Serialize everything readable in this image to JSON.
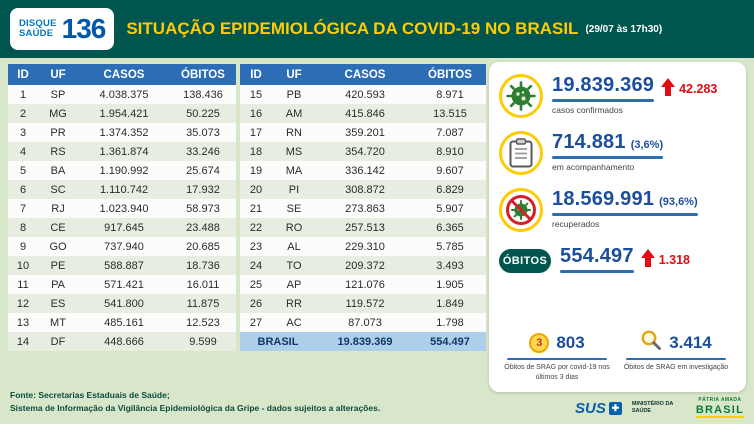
{
  "header": {
    "logo_line1": "DISQUE",
    "logo_line2": "SAÚDE",
    "logo_number": "136",
    "title": "SITUAÇÃO EPIDEMIOLÓGICA DA COVID-19 NO BRASIL",
    "timestamp": "(29/07 às 17h30)"
  },
  "table": {
    "headers": [
      "ID",
      "UF",
      "CASOS",
      "ÓBITOS"
    ],
    "left_rows": [
      [
        "1",
        "SP",
        "4.038.375",
        "138.436"
      ],
      [
        "2",
        "MG",
        "1.954.421",
        "50.225"
      ],
      [
        "3",
        "PR",
        "1.374.352",
        "35.073"
      ],
      [
        "4",
        "RS",
        "1.361.874",
        "33.246"
      ],
      [
        "5",
        "BA",
        "1.190.992",
        "25.674"
      ],
      [
        "6",
        "SC",
        "1.110.742",
        "17.932"
      ],
      [
        "7",
        "RJ",
        "1.023.940",
        "58.973"
      ],
      [
        "8",
        "CE",
        "917.645",
        "23.488"
      ],
      [
        "9",
        "GO",
        "737.940",
        "20.685"
      ],
      [
        "10",
        "PE",
        "588.887",
        "18.736"
      ],
      [
        "11",
        "PA",
        "571.421",
        "16.011"
      ],
      [
        "12",
        "ES",
        "541.800",
        "11.875"
      ],
      [
        "13",
        "MT",
        "485.161",
        "12.523"
      ],
      [
        "14",
        "DF",
        "448.666",
        "9.599"
      ]
    ],
    "right_rows": [
      [
        "15",
        "PB",
        "420.593",
        "8.971"
      ],
      [
        "16",
        "AM",
        "415.846",
        "13.515"
      ],
      [
        "17",
        "RN",
        "359.201",
        "7.087"
      ],
      [
        "18",
        "MS",
        "354.720",
        "8.910"
      ],
      [
        "19",
        "MA",
        "336.142",
        "9.607"
      ],
      [
        "20",
        "PI",
        "308.872",
        "6.829"
      ],
      [
        "21",
        "SE",
        "273.863",
        "5.907"
      ],
      [
        "22",
        "RO",
        "257.513",
        "6.365"
      ],
      [
        "23",
        "AL",
        "229.310",
        "5.785"
      ],
      [
        "24",
        "TO",
        "209.372",
        "3.493"
      ],
      [
        "25",
        "AP",
        "121.076",
        "1.905"
      ],
      [
        "26",
        "RR",
        "119.572",
        "1.849"
      ],
      [
        "27",
        "AC",
        "87.073",
        "1.798"
      ]
    ],
    "total_label": "BRASIL",
    "total_cases": "19.839.369",
    "total_deaths": "554.497"
  },
  "stats": {
    "confirmed": {
      "value": "19.839.369",
      "delta": "42.283",
      "caption": "casos confirmados"
    },
    "monitoring": {
      "value": "714.881",
      "pct": "(3,6%)",
      "caption": "em acompanhamento"
    },
    "recovered": {
      "value": "18.569.991",
      "pct": "(93,6%)",
      "caption": "recuperados"
    },
    "deaths": {
      "label": "ÓBITOS",
      "value": "554.497",
      "delta": "1.318"
    },
    "srag_deaths": {
      "badge": "3",
      "value": "803",
      "caption": "Óbitos de SRAG por covid-19 nos últimos 3 dias"
    },
    "srag_investigation": {
      "value": "3.414",
      "caption": "Óbitos de SRAG em investigação"
    }
  },
  "footer": {
    "line1": "Fonte: Secretarias Estaduais de Saúde;",
    "line2": "Sistema de Informação da Vigilância Epidemiológica da Gripe - dados sujeitos a alterações."
  },
  "logos": {
    "sus": "SUS",
    "ministry": "Ministério da Saúde",
    "brasil_line1": "PÁTRIA AMADA",
    "brasil_line2": "BRASIL"
  },
  "chart_data": {
    "type": "table",
    "title": "Situação epidemiológica da COVID-19 no Brasil (29/07 às 17h30)",
    "columns": [
      "ID",
      "UF",
      "CASOS",
      "ÓBITOS"
    ],
    "rows": [
      [
        1,
        "SP",
        4038375,
        138436
      ],
      [
        2,
        "MG",
        1954421,
        50225
      ],
      [
        3,
        "PR",
        1374352,
        35073
      ],
      [
        4,
        "RS",
        1361874,
        33246
      ],
      [
        5,
        "BA",
        1190992,
        25674
      ],
      [
        6,
        "SC",
        1110742,
        17932
      ],
      [
        7,
        "RJ",
        1023940,
        58973
      ],
      [
        8,
        "CE",
        917645,
        23488
      ],
      [
        9,
        "GO",
        737940,
        20685
      ],
      [
        10,
        "PE",
        588887,
        18736
      ],
      [
        11,
        "PA",
        571421,
        16011
      ],
      [
        12,
        "ES",
        541800,
        11875
      ],
      [
        13,
        "MT",
        485161,
        12523
      ],
      [
        14,
        "DF",
        448666,
        9599
      ],
      [
        15,
        "PB",
        420593,
        8971
      ],
      [
        16,
        "AM",
        415846,
        13515
      ],
      [
        17,
        "RN",
        359201,
        7087
      ],
      [
        18,
        "MS",
        354720,
        8910
      ],
      [
        19,
        "MA",
        336142,
        9607
      ],
      [
        20,
        "PI",
        308872,
        6829
      ],
      [
        21,
        "SE",
        273863,
        5907
      ],
      [
        22,
        "RO",
        257513,
        6365
      ],
      [
        23,
        "AL",
        229310,
        5785
      ],
      [
        24,
        "TO",
        209372,
        3493
      ],
      [
        25,
        "AP",
        121076,
        1905
      ],
      [
        26,
        "RR",
        119572,
        1849
      ],
      [
        27,
        "AC",
        87073,
        1798
      ]
    ],
    "total": {
      "uf": "BRASIL",
      "casos": 19839369,
      "obitos": 554497
    },
    "summary": {
      "casos_confirmados": 19839369,
      "novos_casos": 42283,
      "em_acompanhamento": 714881,
      "em_acompanhamento_pct": 3.6,
      "recuperados": 18569991,
      "recuperados_pct": 93.6,
      "obitos": 554497,
      "novos_obitos": 1318,
      "obitos_srag_covid_ultimos_3_dias": 803,
      "obitos_srag_em_investigacao": 3414
    }
  }
}
